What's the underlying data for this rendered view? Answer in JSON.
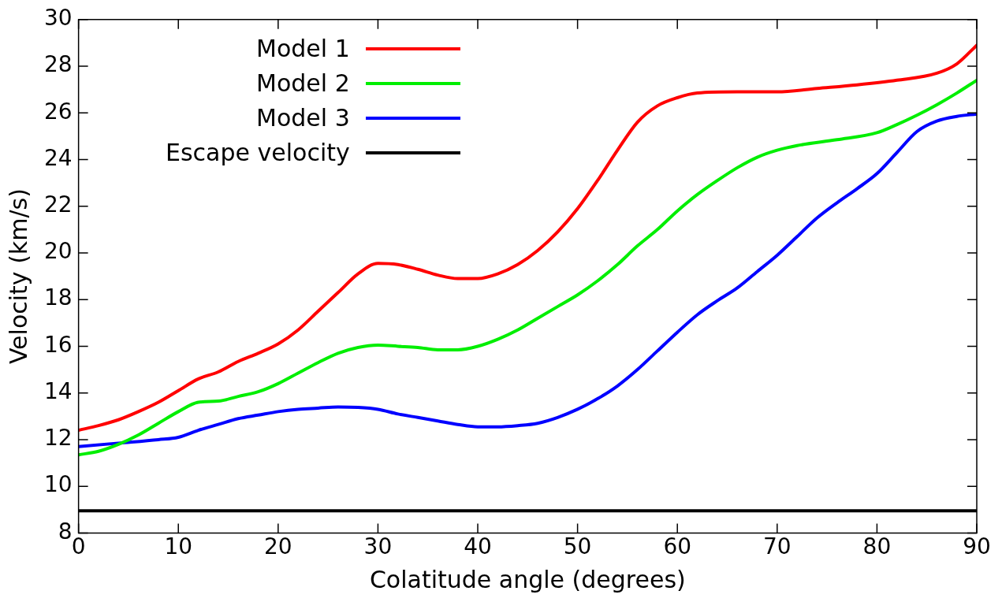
{
  "chart_data": {
    "type": "line",
    "xlabel": "Colatitude angle (degrees)",
    "ylabel": "Velocity (km/s)",
    "xlim": [
      0,
      90
    ],
    "xticks": [
      0,
      10,
      20,
      30,
      40,
      50,
      60,
      70,
      80,
      90
    ],
    "ylim": [
      8,
      30
    ],
    "yticks": [
      8,
      10,
      12,
      14,
      16,
      18,
      20,
      22,
      24,
      26,
      28,
      30
    ],
    "legend": "top left",
    "grid": false,
    "line_style": "solid",
    "marker": "none",
    "series": [
      {
        "name": "Model 1",
        "color": "#ff0000",
        "x": [
          0,
          2,
          4,
          6,
          8,
          10,
          12,
          14,
          16,
          18,
          20,
          22,
          24,
          26,
          28,
          30,
          32,
          34,
          36,
          38,
          40,
          42,
          44,
          46,
          48,
          50,
          52,
          54,
          56,
          58,
          60,
          62,
          66,
          70,
          74,
          78,
          82,
          86,
          88,
          90
        ],
        "values": [
          12.4,
          12.6,
          12.85,
          13.2,
          13.6,
          14.1,
          14.6,
          14.9,
          15.35,
          15.7,
          16.1,
          16.7,
          17.5,
          18.3,
          19.1,
          19.55,
          19.5,
          19.3,
          19.05,
          18.9,
          18.9,
          19.1,
          19.5,
          20.1,
          20.9,
          21.9,
          23.1,
          24.4,
          25.6,
          26.3,
          26.65,
          26.85,
          26.9,
          26.9,
          27.05,
          27.2,
          27.4,
          27.7,
          28.1,
          28.9
        ]
      },
      {
        "name": "Model 2",
        "color": "#00ee00",
        "x": [
          0,
          2,
          4,
          6,
          8,
          10,
          12,
          14,
          16,
          18,
          20,
          22,
          24,
          26,
          28,
          30,
          32,
          34,
          36,
          38,
          40,
          42,
          44,
          46,
          48,
          50,
          52,
          54,
          56,
          58,
          60,
          62,
          64,
          66,
          68,
          70,
          72,
          76,
          80,
          82,
          84,
          86,
          88,
          90
        ],
        "values": [
          11.35,
          11.5,
          11.8,
          12.2,
          12.7,
          13.2,
          13.6,
          13.65,
          13.85,
          14.05,
          14.4,
          14.85,
          15.3,
          15.7,
          15.95,
          16.05,
          16.0,
          15.95,
          15.85,
          15.85,
          16.0,
          16.3,
          16.7,
          17.2,
          17.7,
          18.2,
          18.8,
          19.5,
          20.3,
          21.0,
          21.8,
          22.5,
          23.1,
          23.65,
          24.1,
          24.4,
          24.6,
          24.85,
          25.15,
          25.5,
          25.9,
          26.35,
          26.85,
          27.4
        ]
      },
      {
        "name": "Model 3",
        "color": "#0000ff",
        "x": [
          0,
          4,
          8,
          10,
          12,
          14,
          16,
          18,
          20,
          22,
          24,
          26,
          28,
          30,
          32,
          34,
          36,
          38,
          40,
          42,
          44,
          46,
          48,
          50,
          52,
          54,
          56,
          58,
          60,
          62,
          64,
          66,
          68,
          70,
          72,
          74,
          76,
          78,
          80,
          82,
          84,
          86,
          88,
          90
        ],
        "values": [
          11.7,
          11.85,
          12.0,
          12.1,
          12.4,
          12.65,
          12.9,
          13.05,
          13.2,
          13.3,
          13.35,
          13.4,
          13.38,
          13.3,
          13.1,
          12.95,
          12.8,
          12.65,
          12.55,
          12.55,
          12.6,
          12.7,
          12.95,
          13.3,
          13.75,
          14.3,
          15.0,
          15.8,
          16.6,
          17.35,
          17.95,
          18.5,
          19.2,
          19.9,
          20.7,
          21.5,
          22.15,
          22.75,
          23.4,
          24.3,
          25.2,
          25.65,
          25.85,
          25.95
        ]
      },
      {
        "name": "Escape velocity",
        "color": "#000000",
        "x": [
          0,
          90
        ],
        "values": [
          8.95,
          8.95
        ]
      }
    ]
  }
}
